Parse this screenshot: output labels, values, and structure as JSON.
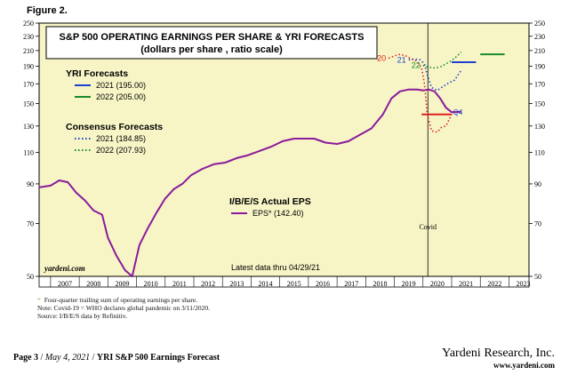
{
  "figure_label": "Figure 2.",
  "chart_data": {
    "type": "line",
    "title": "S&P 500 OPERATING EARNINGS PER SHARE & YRI FORECASTS",
    "subtitle": "(dollars per share , ratio scale)",
    "xlabel": "",
    "ylabel": "",
    "y_scale": "log",
    "ylim": [
      50,
      250
    ],
    "y_ticks": [
      50,
      70,
      90,
      110,
      130,
      150,
      170,
      190,
      210,
      230,
      250
    ],
    "y_tick_labels": [
      "50",
      "70",
      "90",
      "110",
      "130",
      "150",
      "170",
      "190",
      "210",
      "230",
      "250"
    ],
    "xlim": [
      2006.6,
      2023.7
    ],
    "x_ticks": [
      "2007",
      "2008",
      "2009",
      "2010",
      "2011",
      "2012",
      "2013",
      "2014",
      "2015",
      "2016",
      "2017",
      "2018",
      "2019",
      "2020",
      "2021",
      "2022",
      "2023"
    ],
    "grid": false,
    "background_color": "#f7f5c6",
    "legend_groups": [
      {
        "title": "YRI Forecasts",
        "entries": [
          {
            "label": "2021 (195.00)",
            "color": "#1f3fcf",
            "style": "solid"
          },
          {
            "label": "2022 (205.00)",
            "color": "#1a8a2a",
            "style": "solid"
          }
        ]
      },
      {
        "title": "Consensus Forecasts",
        "entries": [
          {
            "label": "2021 (184.85)",
            "color": "#1f3fcf",
            "style": "dotted"
          },
          {
            "label": "2022 (207.93)",
            "color": "#1a8a2a",
            "style": "dotted"
          }
        ]
      },
      {
        "title": "I/B/E/S Actual EPS",
        "entries": [
          {
            "label": "EPS* (142.40)",
            "color": "#8b1a9c",
            "style": "solid"
          }
        ]
      }
    ],
    "series": [
      {
        "name": "EPS* (142.40)",
        "color": "#8b1a9c",
        "style": "solid",
        "x": [
          2006.6,
          2007.0,
          2007.3,
          2007.6,
          2007.9,
          2008.2,
          2008.5,
          2008.8,
          2009.0,
          2009.3,
          2009.6,
          2009.85,
          2010.1,
          2010.4,
          2010.7,
          2011.0,
          2011.3,
          2011.6,
          2011.9,
          2012.3,
          2012.7,
          2013.1,
          2013.5,
          2013.9,
          2014.3,
          2014.7,
          2015.1,
          2015.5,
          2015.9,
          2016.2,
          2016.6,
          2017.0,
          2017.4,
          2017.8,
          2018.2,
          2018.6,
          2018.9,
          2019.2,
          2019.5,
          2019.8,
          2020.0,
          2020.2,
          2020.4,
          2020.6,
          2020.8,
          2021.0,
          2021.33
        ],
        "y": [
          88,
          89,
          92,
          91,
          85,
          81,
          76,
          74,
          64,
          57,
          52,
          50,
          61,
          68,
          75,
          82,
          87,
          90,
          95,
          99,
          102,
          103,
          106,
          108,
          111,
          114,
          118,
          120,
          120,
          120,
          117,
          116,
          118,
          123,
          128,
          140,
          155,
          162,
          164,
          164,
          163,
          164,
          162,
          155,
          146,
          142,
          142.4
        ]
      },
      {
        "name": "Covid-19 marker (Consensus 2020)",
        "label": "20",
        "color": "#e0201f",
        "style": "dotted",
        "x": [
          2018.8,
          2019.0,
          2019.2,
          2019.4,
          2019.6,
          2019.8,
          2019.95,
          2020.05,
          2020.15,
          2020.3,
          2020.5,
          2020.65,
          2020.8,
          2021.0
        ],
        "y": [
          200,
          203,
          205,
          203,
          199,
          196,
          188,
          170,
          140,
          126,
          125,
          129,
          130,
          140
        ]
      },
      {
        "name": "2021 (184.85)",
        "label": "21",
        "color": "#1f3fcf",
        "style": "dotted",
        "x": [
          2019.5,
          2019.7,
          2019.9,
          2020.05,
          2020.15,
          2020.3,
          2020.5,
          2020.7,
          2020.9,
          2021.1,
          2021.33
        ],
        "y": [
          198,
          199,
          198,
          193,
          180,
          166,
          163,
          167,
          171,
          174,
          184.85
        ]
      },
      {
        "name": "2022 (207.93)",
        "label": "22",
        "color": "#1a8a2a",
        "style": "dotted",
        "x": [
          2020.0,
          2020.2,
          2020.4,
          2020.6,
          2020.8,
          2021.0,
          2021.2,
          2021.33
        ],
        "y": [
          191,
          189,
          188,
          189,
          193,
          197,
          203,
          207.93
        ]
      },
      {
        "name": "2020 actual drop (red)",
        "color": "#e0201f",
        "style": "solid",
        "x": [
          2019.95,
          2021.0
        ],
        "y": [
          140,
          140
        ]
      },
      {
        "name": "2021 (195.00)",
        "color": "#1f3fcf",
        "style": "solid",
        "x": [
          2021.0,
          2021.85
        ],
        "y": [
          195,
          195
        ]
      },
      {
        "name": "2022 (205.00)",
        "color": "#1a8a2a",
        "style": "solid",
        "x": [
          2022.0,
          2022.85
        ],
        "y": [
          205,
          205
        ]
      }
    ],
    "annotations": {
      "covid_line_x": 2020.17,
      "covid_label": "Covid",
      "q4_label": "Q4",
      "latest_data": "Latest data thru 04/29/21",
      "watermark": "yardeni.com"
    }
  },
  "footnotes": {
    "line1": "Four-quarter trailing sum of operating earnings per share.",
    "line2": "Note: Covid-19 = WHO declares global pandemic on 3/11/2020.",
    "line3": "Source: I/B/E/S data by Refinitiv."
  },
  "footer": {
    "page": "Page 3",
    "date": "May 4, 2021",
    "report": "YRI S&P 500 Earnings Forecast",
    "company": "Yardeni Research, Inc.",
    "website": "www.yardeni.com"
  }
}
